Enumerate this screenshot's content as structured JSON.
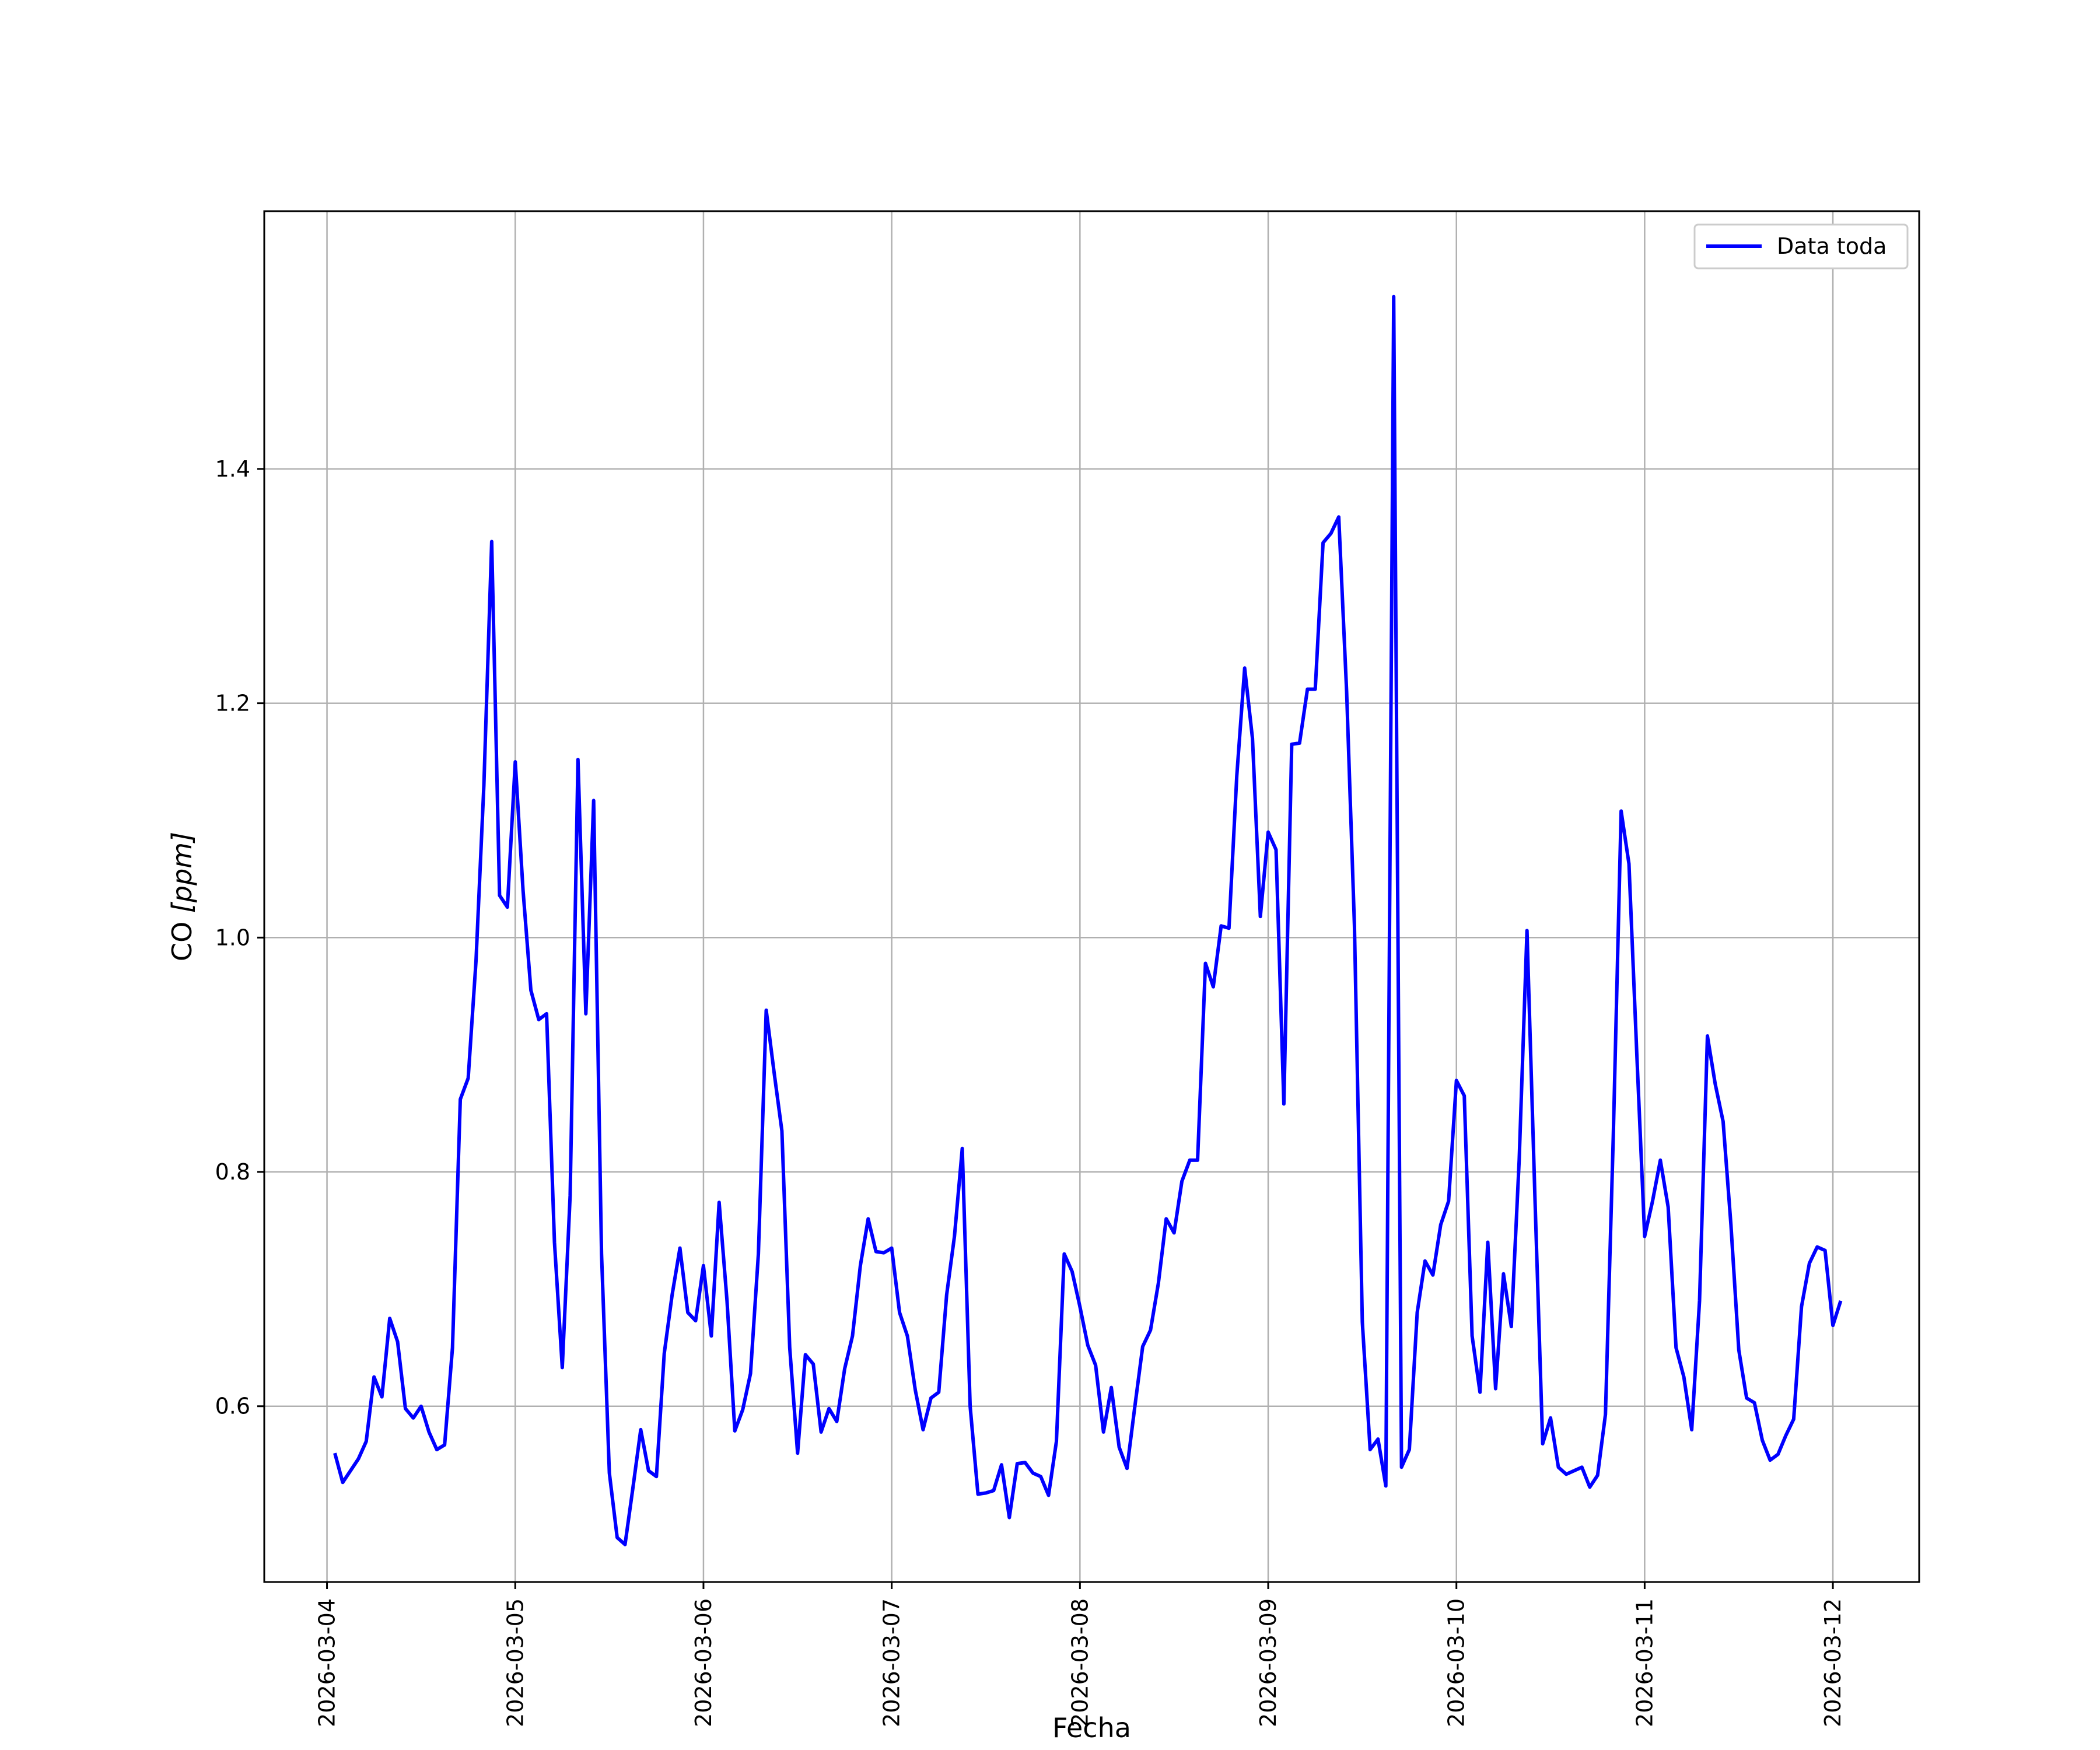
{
  "chart_data": {
    "type": "line",
    "xlabel": "Fecha",
    "ylabel": "CO [ppm]",
    "ylabel_parts": {
      "prefix": "CO ",
      "unit": "[ppm]"
    },
    "x_ticks": [
      "2026-03-04",
      "2026-03-05",
      "2026-03-06",
      "2026-03-07",
      "2026-03-08",
      "2026-03-09",
      "2026-03-10",
      "2026-03-11",
      "2026-03-12"
    ],
    "y_ticks": [
      "0.6",
      "0.8",
      "1.0",
      "1.2",
      "1.4"
    ],
    "xlim": [
      "2026-03-03T16:00",
      "2026-03-12T11:00"
    ],
    "ylim": [
      0.45,
      1.62
    ],
    "grid": true,
    "legend_position": "top-right",
    "line_color": "#0000ff",
    "series": [
      {
        "name": "Data toda",
        "color": "#0000ff",
        "points": [
          [
            "2026-03-04T01:00",
            0.56
          ],
          [
            "2026-03-04T02:00",
            0.535
          ],
          [
            "2026-03-04T04:00",
            0.555
          ],
          [
            "2026-03-04T05:00",
            0.57
          ],
          [
            "2026-03-04T06:00",
            0.625
          ],
          [
            "2026-03-04T07:00",
            0.608
          ],
          [
            "2026-03-04T08:00",
            0.675
          ],
          [
            "2026-03-04T09:00",
            0.655
          ],
          [
            "2026-03-04T10:00",
            0.598
          ],
          [
            "2026-03-04T11:00",
            0.59
          ],
          [
            "2026-03-04T12:00",
            0.6
          ],
          [
            "2026-03-04T13:00",
            0.578
          ],
          [
            "2026-03-04T14:00",
            0.563
          ],
          [
            "2026-03-04T15:00",
            0.567
          ],
          [
            "2026-03-04T16:00",
            0.65
          ],
          [
            "2026-03-04T17:00",
            0.862
          ],
          [
            "2026-03-04T18:00",
            0.88
          ],
          [
            "2026-03-04T19:00",
            0.98
          ],
          [
            "2026-03-04T20:00",
            1.13
          ],
          [
            "2026-03-04T21:00",
            1.338
          ],
          [
            "2026-03-04T22:00",
            1.036
          ],
          [
            "2026-03-04T23:00",
            1.026
          ],
          [
            "2026-03-05T00:00",
            1.15
          ],
          [
            "2026-03-05T01:00",
            1.04
          ],
          [
            "2026-03-05T02:00",
            0.955
          ],
          [
            "2026-03-05T03:00",
            0.93
          ],
          [
            "2026-03-05T04:00",
            0.935
          ],
          [
            "2026-03-05T05:00",
            0.74
          ],
          [
            "2026-03-05T06:00",
            0.633
          ],
          [
            "2026-03-05T07:00",
            0.78
          ],
          [
            "2026-03-05T08:00",
            1.152
          ],
          [
            "2026-03-05T09:00",
            0.935
          ],
          [
            "2026-03-05T10:00",
            1.117
          ],
          [
            "2026-03-05T11:00",
            0.73
          ],
          [
            "2026-03-05T12:00",
            0.543
          ],
          [
            "2026-03-05T13:00",
            0.488
          ],
          [
            "2026-03-05T14:00",
            0.482
          ],
          [
            "2026-03-05T15:00",
            0.53
          ],
          [
            "2026-03-05T16:00",
            0.58
          ],
          [
            "2026-03-05T17:00",
            0.545
          ],
          [
            "2026-03-05T18:00",
            0.54
          ],
          [
            "2026-03-05T19:00",
            0.645
          ],
          [
            "2026-03-05T20:00",
            0.695
          ],
          [
            "2026-03-05T21:00",
            0.735
          ],
          [
            "2026-03-05T22:00",
            0.68
          ],
          [
            "2026-03-05T23:00",
            0.673
          ],
          [
            "2026-03-06T00:00",
            0.72
          ],
          [
            "2026-03-06T01:00",
            0.66
          ],
          [
            "2026-03-06T02:00",
            0.774
          ],
          [
            "2026-03-06T03:00",
            0.69
          ],
          [
            "2026-03-06T04:00",
            0.579
          ],
          [
            "2026-03-06T05:00",
            0.597
          ],
          [
            "2026-03-06T06:00",
            0.628
          ],
          [
            "2026-03-06T07:00",
            0.73
          ],
          [
            "2026-03-06T08:00",
            0.938
          ],
          [
            "2026-03-06T09:00",
            0.885
          ],
          [
            "2026-03-06T10:00",
            0.835
          ],
          [
            "2026-03-06T11:00",
            0.65
          ],
          [
            "2026-03-06T12:00",
            0.56
          ],
          [
            "2026-03-06T13:00",
            0.644
          ],
          [
            "2026-03-06T14:00",
            0.636
          ],
          [
            "2026-03-06T15:00",
            0.578
          ],
          [
            "2026-03-06T16:00",
            0.598
          ],
          [
            "2026-03-06T17:00",
            0.587
          ],
          [
            "2026-03-06T18:00",
            0.632
          ],
          [
            "2026-03-06T19:00",
            0.66
          ],
          [
            "2026-03-06T20:00",
            0.72
          ],
          [
            "2026-03-06T21:00",
            0.76
          ],
          [
            "2026-03-06T22:00",
            0.732
          ],
          [
            "2026-03-06T23:00",
            0.731
          ],
          [
            "2026-03-07T00:00",
            0.735
          ],
          [
            "2026-03-07T01:00",
            0.68
          ],
          [
            "2026-03-07T02:00",
            0.66
          ],
          [
            "2026-03-07T03:00",
            0.614
          ],
          [
            "2026-03-07T04:00",
            0.58
          ],
          [
            "2026-03-07T05:00",
            0.607
          ],
          [
            "2026-03-07T06:00",
            0.612
          ],
          [
            "2026-03-07T07:00",
            0.695
          ],
          [
            "2026-03-07T08:00",
            0.745
          ],
          [
            "2026-03-07T09:00",
            0.82
          ],
          [
            "2026-03-07T10:00",
            0.6
          ],
          [
            "2026-03-07T11:00",
            0.525
          ],
          [
            "2026-03-07T12:00",
            0.526
          ],
          [
            "2026-03-07T13:00",
            0.528
          ],
          [
            "2026-03-07T14:00",
            0.55
          ],
          [
            "2026-03-07T15:00",
            0.505
          ],
          [
            "2026-03-07T16:00",
            0.551
          ],
          [
            "2026-03-07T17:00",
            0.552
          ],
          [
            "2026-03-07T18:00",
            0.543
          ],
          [
            "2026-03-07T19:00",
            0.54
          ],
          [
            "2026-03-07T20:00",
            0.524
          ],
          [
            "2026-03-07T21:00",
            0.57
          ],
          [
            "2026-03-07T22:00",
            0.73
          ],
          [
            "2026-03-07T23:00",
            0.715
          ],
          [
            "2026-03-08T00:00",
            0.685
          ],
          [
            "2026-03-08T01:00",
            0.652
          ],
          [
            "2026-03-08T02:00",
            0.635
          ],
          [
            "2026-03-08T03:00",
            0.578
          ],
          [
            "2026-03-08T04:00",
            0.616
          ],
          [
            "2026-03-08T05:00",
            0.565
          ],
          [
            "2026-03-08T06:00",
            0.547
          ],
          [
            "2026-03-08T07:00",
            0.6
          ],
          [
            "2026-03-08T08:00",
            0.651
          ],
          [
            "2026-03-08T09:00",
            0.665
          ],
          [
            "2026-03-08T10:00",
            0.705
          ],
          [
            "2026-03-08T11:00",
            0.76
          ],
          [
            "2026-03-08T12:00",
            0.748
          ],
          [
            "2026-03-08T13:00",
            0.792
          ],
          [
            "2026-03-08T14:00",
            0.81
          ],
          [
            "2026-03-08T15:00",
            0.81
          ],
          [
            "2026-03-08T16:00",
            0.978
          ],
          [
            "2026-03-08T17:00",
            0.958
          ],
          [
            "2026-03-08T18:00",
            1.01
          ],
          [
            "2026-03-08T19:00",
            1.008
          ],
          [
            "2026-03-08T20:00",
            1.138
          ],
          [
            "2026-03-08T21:00",
            1.23
          ],
          [
            "2026-03-08T22:00",
            1.17
          ],
          [
            "2026-03-08T23:00",
            1.018
          ],
          [
            "2026-03-09T00:00",
            1.09
          ],
          [
            "2026-03-09T01:00",
            1.075
          ],
          [
            "2026-03-09T02:00",
            0.858
          ],
          [
            "2026-03-09T03:00",
            1.165
          ],
          [
            "2026-03-09T04:00",
            1.166
          ],
          [
            "2026-03-09T05:00",
            1.212
          ],
          [
            "2026-03-09T06:00",
            1.212
          ],
          [
            "2026-03-09T07:00",
            1.337
          ],
          [
            "2026-03-09T08:00",
            1.345
          ],
          [
            "2026-03-09T09:00",
            1.359
          ],
          [
            "2026-03-09T10:00",
            1.21
          ],
          [
            "2026-03-09T11:00",
            1.01
          ],
          [
            "2026-03-09T12:00",
            0.672
          ],
          [
            "2026-03-09T13:00",
            0.563
          ],
          [
            "2026-03-09T14:00",
            0.572
          ],
          [
            "2026-03-09T15:00",
            0.532
          ],
          [
            "2026-03-09T16:00",
            1.547
          ],
          [
            "2026-03-09T17:00",
            0.548
          ],
          [
            "2026-03-09T18:00",
            0.563
          ],
          [
            "2026-03-09T19:00",
            0.68
          ],
          [
            "2026-03-09T20:00",
            0.724
          ],
          [
            "2026-03-09T21:00",
            0.712
          ],
          [
            "2026-03-09T22:00",
            0.755
          ],
          [
            "2026-03-09T23:00",
            0.775
          ],
          [
            "2026-03-10T00:00",
            0.878
          ],
          [
            "2026-03-10T01:00",
            0.865
          ],
          [
            "2026-03-10T02:00",
            0.66
          ],
          [
            "2026-03-10T03:00",
            0.612
          ],
          [
            "2026-03-10T04:00",
            0.74
          ],
          [
            "2026-03-10T05:00",
            0.615
          ],
          [
            "2026-03-10T06:00",
            0.713
          ],
          [
            "2026-03-10T07:00",
            0.668
          ],
          [
            "2026-03-10T08:00",
            0.81
          ],
          [
            "2026-03-10T09:00",
            1.006
          ],
          [
            "2026-03-10T10:00",
            0.78
          ],
          [
            "2026-03-10T11:00",
            0.568
          ],
          [
            "2026-03-10T12:00",
            0.59
          ],
          [
            "2026-03-10T13:00",
            0.548
          ],
          [
            "2026-03-10T14:00",
            0.542
          ],
          [
            "2026-03-10T15:00",
            0.545
          ],
          [
            "2026-03-10T16:00",
            0.548
          ],
          [
            "2026-03-10T17:00",
            0.531
          ],
          [
            "2026-03-10T18:00",
            0.541
          ],
          [
            "2026-03-10T19:00",
            0.593
          ],
          [
            "2026-03-10T20:00",
            0.83
          ],
          [
            "2026-03-10T21:00",
            1.108
          ],
          [
            "2026-03-10T22:00",
            1.063
          ],
          [
            "2026-03-10T23:00",
            0.9
          ],
          [
            "2026-03-11T00:00",
            0.745
          ],
          [
            "2026-03-11T01:00",
            0.775
          ],
          [
            "2026-03-11T02:00",
            0.81
          ],
          [
            "2026-03-11T03:00",
            0.77
          ],
          [
            "2026-03-11T04:00",
            0.65
          ],
          [
            "2026-03-11T05:00",
            0.625
          ],
          [
            "2026-03-11T06:00",
            0.58
          ],
          [
            "2026-03-11T07:00",
            0.69
          ],
          [
            "2026-03-11T08:00",
            0.916
          ],
          [
            "2026-03-11T09:00",
            0.875
          ],
          [
            "2026-03-11T10:00",
            0.843
          ],
          [
            "2026-03-11T11:00",
            0.755
          ],
          [
            "2026-03-11T12:00",
            0.648
          ],
          [
            "2026-03-11T13:00",
            0.607
          ],
          [
            "2026-03-11T14:00",
            0.603
          ],
          [
            "2026-03-11T15:00",
            0.571
          ],
          [
            "2026-03-11T16:00",
            0.554
          ],
          [
            "2026-03-11T17:00",
            0.559
          ],
          [
            "2026-03-11T18:00",
            0.575
          ],
          [
            "2026-03-11T19:00",
            0.589
          ],
          [
            "2026-03-11T20:00",
            0.685
          ],
          [
            "2026-03-11T21:00",
            0.722
          ],
          [
            "2026-03-11T22:00",
            0.736
          ],
          [
            "2026-03-11T23:00",
            0.733
          ],
          [
            "2026-03-12T00:00",
            0.669
          ],
          [
            "2026-03-12T01:00",
            0.69
          ]
        ]
      }
    ]
  }
}
